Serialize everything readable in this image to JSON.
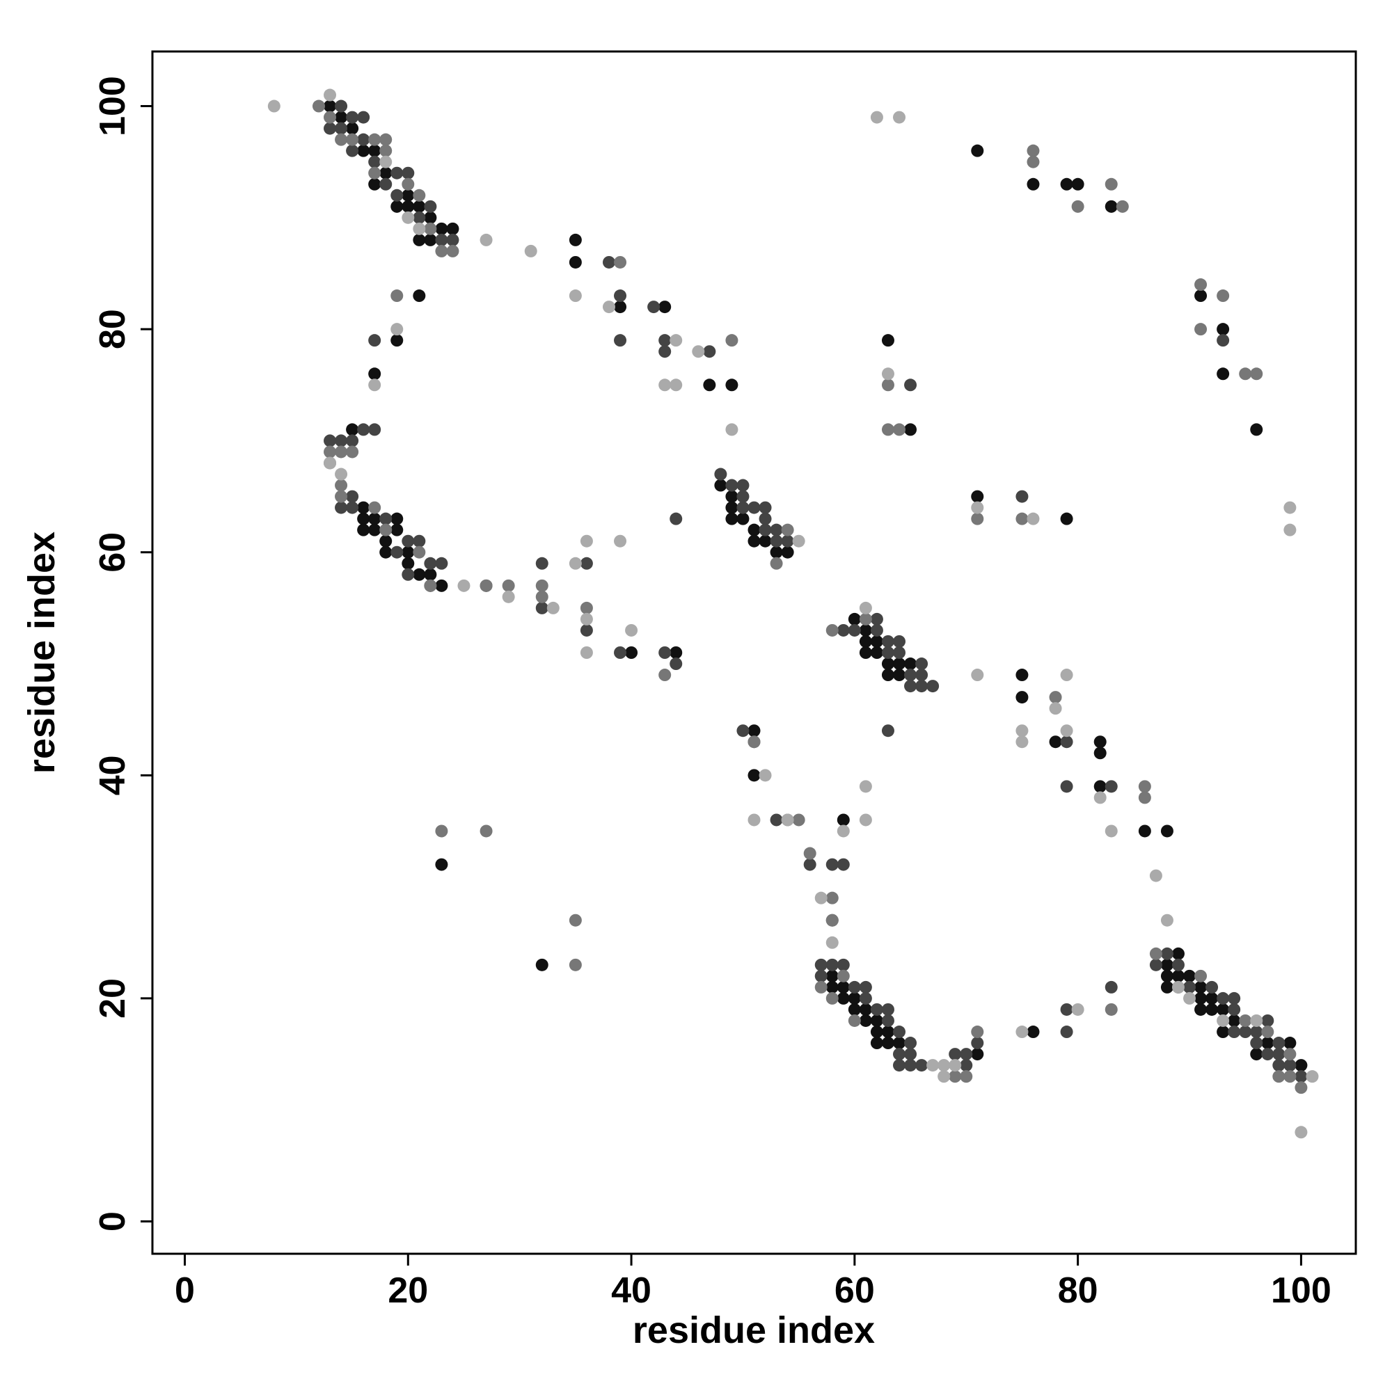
{
  "chart_data": {
    "type": "scatter",
    "xlabel": "residue index",
    "ylabel": "residue index",
    "xlim": [
      -2.9,
      104.9
    ],
    "ylim": [
      -2.9,
      104.9
    ],
    "xticks": [
      0,
      20,
      40,
      60,
      80,
      100
    ],
    "yticks": [
      0,
      20,
      40,
      60,
      80,
      100
    ],
    "series": [
      {
        "color": "#111111",
        "x": [
          13,
          14,
          15,
          16,
          17,
          17,
          18,
          19,
          20,
          20,
          21,
          21,
          22,
          22,
          23,
          24,
          15,
          16,
          17,
          16,
          17,
          18,
          18,
          19,
          19,
          20,
          20,
          21,
          22,
          23,
          16,
          35,
          35,
          39,
          43,
          47,
          49,
          19,
          21,
          17,
          40,
          44,
          48,
          49,
          49,
          49,
          50,
          51,
          51,
          52,
          53,
          54,
          60,
          61,
          61,
          62,
          62,
          63,
          63,
          64,
          64,
          65,
          61,
          51,
          51,
          59,
          58,
          58,
          59,
          59,
          60,
          60,
          61,
          61,
          62,
          62,
          63,
          63,
          64,
          62,
          71,
          71,
          76,
          79,
          80,
          83,
          91,
          93,
          93,
          96,
          63,
          65,
          71,
          79,
          75,
          75,
          78,
          82,
          82,
          82,
          86,
          88,
          76,
          88,
          88,
          89,
          89,
          90,
          90,
          91,
          91,
          91,
          92,
          92,
          93,
          93,
          94,
          96,
          97,
          99,
          100,
          88,
          23,
          32
        ],
        "y": [
          100,
          99,
          98,
          96,
          96,
          93,
          94,
          91,
          92,
          91,
          88,
          91,
          90,
          88,
          89,
          89,
          71,
          63,
          62,
          62,
          63,
          61,
          60,
          62,
          63,
          59,
          60,
          58,
          58,
          57,
          64,
          88,
          86,
          82,
          82,
          75,
          75,
          79,
          83,
          76,
          51,
          51,
          66,
          65,
          64,
          63,
          63,
          62,
          61,
          61,
          60,
          60,
          54,
          53,
          52,
          51,
          52,
          50,
          49,
          50,
          49,
          50,
          51,
          44,
          40,
          36,
          22,
          21,
          21,
          20,
          20,
          19,
          19,
          18,
          18,
          17,
          17,
          16,
          16,
          16,
          15,
          96,
          93,
          93,
          93,
          91,
          83,
          80,
          76,
          71,
          79,
          71,
          65,
          63,
          49,
          47,
          43,
          43,
          42,
          39,
          35,
          35,
          17,
          23,
          22,
          24,
          22,
          22,
          21,
          21,
          20,
          19,
          20,
          19,
          17,
          19,
          18,
          15,
          16,
          16,
          14,
          21,
          32,
          23
        ]
      },
      {
        "color": "#444444",
        "x": [
          14,
          16,
          15,
          13,
          14,
          16,
          17,
          18,
          19,
          20,
          21,
          22,
          23,
          24,
          15,
          19,
          16,
          15,
          14,
          15,
          18,
          19,
          21,
          20,
          22,
          23,
          20,
          22,
          17,
          13,
          14,
          15,
          27,
          32,
          32,
          36,
          36,
          39,
          43,
          44,
          44,
          38,
          39,
          39,
          42,
          43,
          43,
          47,
          17,
          48,
          49,
          50,
          50,
          50,
          51,
          52,
          52,
          53,
          53,
          54,
          52,
          59,
          60,
          62,
          62,
          63,
          63,
          64,
          64,
          65,
          65,
          66,
          66,
          66,
          67,
          50,
          51,
          53,
          56,
          58,
          59,
          63,
          57,
          57,
          58,
          59,
          60,
          61,
          61,
          62,
          63,
          63,
          64,
          64,
          64,
          65,
          65,
          65,
          66,
          70,
          71,
          70,
          69,
          93,
          65,
          75,
          79,
          79,
          83,
          79,
          79,
          83,
          87,
          88,
          89,
          90,
          92,
          93,
          94,
          94,
          94,
          95,
          96,
          96,
          97,
          98,
          98,
          99,
          100,
          97,
          98,
          89,
          58
        ],
        "y": [
          100,
          99,
          99,
          98,
          98,
          97,
          95,
          93,
          94,
          94,
          90,
          91,
          88,
          88,
          96,
          92,
          71,
          65,
          64,
          64,
          63,
          60,
          61,
          61,
          59,
          59,
          58,
          57,
          71,
          70,
          70,
          70,
          57,
          55,
          59,
          59,
          53,
          51,
          51,
          50,
          63,
          86,
          83,
          79,
          82,
          79,
          78,
          78,
          79,
          67,
          66,
          66,
          65,
          64,
          64,
          64,
          62,
          62,
          61,
          61,
          63,
          53,
          53,
          53,
          54,
          52,
          51,
          52,
          51,
          49,
          48,
          48,
          49,
          50,
          48,
          44,
          43,
          36,
          32,
          32,
          32,
          44,
          23,
          22,
          23,
          23,
          21,
          21,
          20,
          19,
          19,
          18,
          17,
          15,
          14,
          16,
          15,
          14,
          14,
          14,
          16,
          15,
          15,
          79,
          75,
          65,
          43,
          39,
          39,
          19,
          17,
          21,
          23,
          24,
          23,
          21,
          21,
          20,
          20,
          19,
          17,
          17,
          17,
          16,
          18,
          16,
          15,
          14,
          13,
          15,
          14,
          21,
          27
        ]
      },
      {
        "color": "#777777",
        "x": [
          12,
          13,
          14,
          15,
          17,
          18,
          18,
          17,
          20,
          21,
          23,
          24,
          22,
          13,
          14,
          14,
          14,
          17,
          18,
          21,
          22,
          13,
          15,
          27,
          29,
          32,
          32,
          36,
          43,
          39,
          49,
          19,
          51,
          53,
          54,
          54,
          58,
          61,
          55,
          56,
          58,
          58,
          57,
          58,
          60,
          59,
          69,
          71,
          70,
          23,
          27,
          35,
          35,
          76,
          76,
          80,
          83,
          84,
          91,
          93,
          91,
          95,
          96,
          63,
          63,
          64,
          71,
          75,
          78,
          86,
          86,
          83,
          87,
          91,
          95,
          98,
          99,
          99,
          100,
          97
        ],
        "y": [
          100,
          99,
          97,
          97,
          97,
          97,
          96,
          94,
          93,
          92,
          87,
          87,
          89,
          69,
          69,
          66,
          65,
          64,
          62,
          60,
          57,
          68,
          69,
          57,
          57,
          57,
          56,
          55,
          49,
          86,
          79,
          83,
          43,
          59,
          62,
          36,
          53,
          54,
          36,
          33,
          29,
          27,
          21,
          20,
          18,
          22,
          13,
          17,
          13,
          35,
          35,
          27,
          23,
          96,
          95,
          91,
          93,
          91,
          84,
          83,
          80,
          76,
          76,
          75,
          71,
          71,
          63,
          63,
          47,
          39,
          38,
          19,
          24,
          22,
          18,
          13,
          13,
          15,
          12,
          17
        ]
      },
      {
        "color": "#aaaaaa",
        "x": [
          8,
          13,
          18,
          20,
          21,
          27,
          31,
          14,
          13,
          25,
          29,
          33,
          35,
          36,
          39,
          36,
          36,
          40,
          35,
          38,
          44,
          43,
          44,
          46,
          49,
          17,
          19,
          55,
          61,
          52,
          51,
          54,
          57,
          58,
          59,
          61,
          61,
          68,
          67,
          68,
          69,
          62,
          64,
          63,
          71,
          76,
          99,
          99,
          71,
          75,
          75,
          78,
          79,
          79,
          82,
          83,
          87,
          88,
          75,
          80,
          90,
          89,
          96,
          100,
          101,
          93
        ],
        "y": [
          100,
          101,
          95,
          90,
          89,
          88,
          87,
          67,
          68,
          57,
          56,
          55,
          59,
          61,
          61,
          54,
          51,
          53,
          83,
          82,
          79,
          75,
          75,
          78,
          71,
          75,
          80,
          61,
          55,
          40,
          36,
          36,
          29,
          25,
          35,
          39,
          36,
          13,
          14,
          14,
          14,
          99,
          99,
          76,
          64,
          63,
          64,
          62,
          49,
          44,
          43,
          46,
          49,
          44,
          38,
          35,
          31,
          27,
          17,
          19,
          20,
          21,
          18,
          8,
          13,
          18
        ]
      }
    ]
  }
}
